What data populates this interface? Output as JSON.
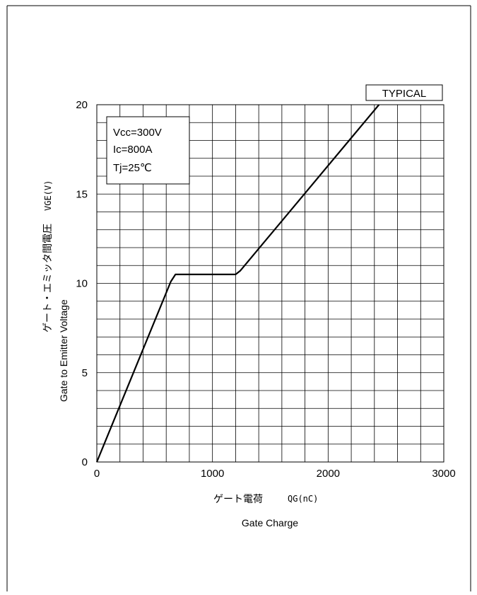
{
  "chart_data": {
    "type": "line",
    "badge": "TYPICAL",
    "conditions": [
      "Vcc=300V",
      "Ic=800A",
      "Tj=25℃"
    ],
    "ylabel_jp": "ゲート・エミッタ間電圧",
    "ylabel_symbol": "VGE(V)",
    "ylabel_en": "Gate to Emitter Voltage",
    "xlabel_jp": "ゲート電荷",
    "xlabel_symbol": "QG(nC)",
    "xlabel_en": "Gate Charge",
    "xlim": [
      0,
      3000
    ],
    "ylim": [
      0,
      20
    ],
    "x_ticks": [
      0,
      1000,
      2000,
      3000
    ],
    "y_ticks": [
      0,
      5,
      10,
      15,
      20
    ],
    "grid": true,
    "series": [
      {
        "x": [
          0,
          640,
          680,
          1200,
          1240,
          2440
        ],
        "y": [
          0,
          10.1,
          10.5,
          10.5,
          10.7,
          20
        ]
      }
    ]
  }
}
